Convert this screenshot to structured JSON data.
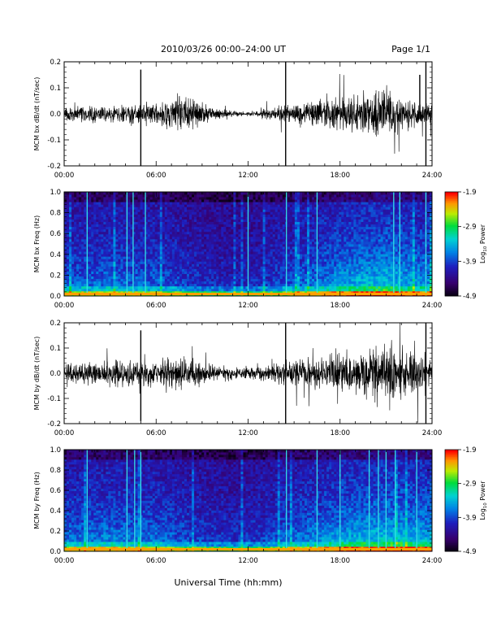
{
  "header": {
    "title": "2010/03/26  00:00–24:00 UT",
    "page": "Page 1/1"
  },
  "chart_data": [
    {
      "type": "line",
      "panel": "bx-timeseries",
      "ylabel": "MCM bx dB/dt (nT/sec)",
      "xlabel": "",
      "xlim": [
        0,
        24
      ],
      "ylim": [
        -0.2,
        0.2
      ],
      "yticks": [
        "-0.2",
        "-0.1",
        "0.0",
        "0.1",
        "0.2"
      ],
      "xticks": [
        "00:00",
        "06:00",
        "12:00",
        "18:00",
        "24:00"
      ],
      "baseline_amplitude_nT_per_s": [
        [
          0,
          0.02
        ],
        [
          4,
          0.025
        ],
        [
          6,
          0.03
        ],
        [
          8,
          0.05
        ],
        [
          10,
          0.012
        ],
        [
          12,
          0.005
        ],
        [
          14,
          0.02
        ],
        [
          17,
          0.04
        ],
        [
          19,
          0.05
        ],
        [
          21,
          0.06
        ],
        [
          22,
          0.04
        ],
        [
          24,
          0.03
        ]
      ],
      "spikes": [
        {
          "t": 5.0,
          "min": -0.2,
          "max": 0.17
        },
        {
          "t": 14.45,
          "min": -0.2,
          "max": 0.22
        },
        {
          "t": 23.2,
          "min": -0.02,
          "max": 0.15
        },
        {
          "t": 23.6,
          "min": -0.2,
          "max": 0.22
        }
      ]
    },
    {
      "type": "heatmap",
      "panel": "bx-spectrogram",
      "ylabel": "MCM bx Freq (Hz)",
      "xlabel": "",
      "xlim": [
        0,
        24
      ],
      "ylim": [
        0.0,
        1.0
      ],
      "yticks": [
        "0.0",
        "0.2",
        "0.4",
        "0.6",
        "0.8",
        "1.0"
      ],
      "xticks": [
        "00:00",
        "06:00",
        "12:00",
        "18:00",
        "24:00"
      ],
      "colorbar": {
        "label": "Log",
        "label_sub": "10",
        "label_rest": " Power",
        "range": [
          -4.9,
          -1.9
        ],
        "ticks": [
          "-1.9",
          "-2.9",
          "-3.9",
          "-4.9"
        ]
      },
      "activity_profile": [
        [
          0,
          0.45
        ],
        [
          3,
          0.5
        ],
        [
          6,
          0.45
        ],
        [
          9,
          0.3
        ],
        [
          11,
          0.25
        ],
        [
          13,
          0.3
        ],
        [
          15,
          0.45
        ],
        [
          17,
          0.55
        ],
        [
          19,
          0.7
        ],
        [
          21,
          0.75
        ],
        [
          24,
          0.6
        ]
      ],
      "bright_lines_hours": [
        1.5,
        4.1,
        4.5,
        5.3,
        12.0,
        14.5,
        16.5,
        21.5,
        21.9,
        23.6
      ]
    },
    {
      "type": "line",
      "panel": "by-timeseries",
      "ylabel": "MCM by dB/dt (nT/sec)",
      "xlabel": "",
      "xlim": [
        0,
        24
      ],
      "ylim": [
        -0.2,
        0.2
      ],
      "yticks": [
        "-0.2",
        "-0.1",
        "0.0",
        "0.1",
        "0.2"
      ],
      "xticks": [
        "00:00",
        "06:00",
        "12:00",
        "18:00",
        "24:00"
      ],
      "baseline_amplitude_nT_per_s": [
        [
          0,
          0.03
        ],
        [
          4,
          0.035
        ],
        [
          6,
          0.04
        ],
        [
          8,
          0.045
        ],
        [
          10,
          0.02
        ],
        [
          12,
          0.015
        ],
        [
          14,
          0.03
        ],
        [
          17,
          0.05
        ],
        [
          19,
          0.06
        ],
        [
          21,
          0.08
        ],
        [
          22,
          0.07
        ],
        [
          24,
          0.05
        ]
      ],
      "spikes": [
        {
          "t": 5.0,
          "min": -0.19,
          "max": 0.17
        },
        {
          "t": 14.45,
          "min": -0.2,
          "max": 0.22
        },
        {
          "t": 23.6,
          "min": -0.2,
          "max": 0.22
        }
      ]
    },
    {
      "type": "heatmap",
      "panel": "by-spectrogram",
      "ylabel": "MCM by Freq (Hz)",
      "xlabel": "",
      "xlim": [
        0,
        24
      ],
      "ylim": [
        0.0,
        1.0
      ],
      "yticks": [
        "0.0",
        "0.2",
        "0.4",
        "0.6",
        "0.8",
        "1.0"
      ],
      "xticks": [
        "00:00",
        "06:00",
        "12:00",
        "18:00",
        "24:00"
      ],
      "colorbar": {
        "label": "Log",
        "label_sub": "10",
        "label_rest": " Power",
        "range": [
          -4.9,
          -1.9
        ],
        "ticks": [
          "-1.9",
          "-2.9",
          "-3.9",
          "-4.9"
        ]
      },
      "activity_profile": [
        [
          0,
          0.5
        ],
        [
          3,
          0.55
        ],
        [
          6,
          0.5
        ],
        [
          9,
          0.35
        ],
        [
          11,
          0.3
        ],
        [
          13,
          0.35
        ],
        [
          15,
          0.5
        ],
        [
          17,
          0.6
        ],
        [
          19,
          0.7
        ],
        [
          21,
          0.75
        ],
        [
          24,
          0.7
        ]
      ],
      "bright_lines_hours": [
        1.5,
        4.1,
        4.6,
        5.0,
        14.5,
        16.5,
        18.0,
        19.9,
        20.5,
        21.0,
        21.6,
        23.0
      ]
    }
  ],
  "footer": {
    "xlabel": "Universal Time (hh:mm)"
  }
}
